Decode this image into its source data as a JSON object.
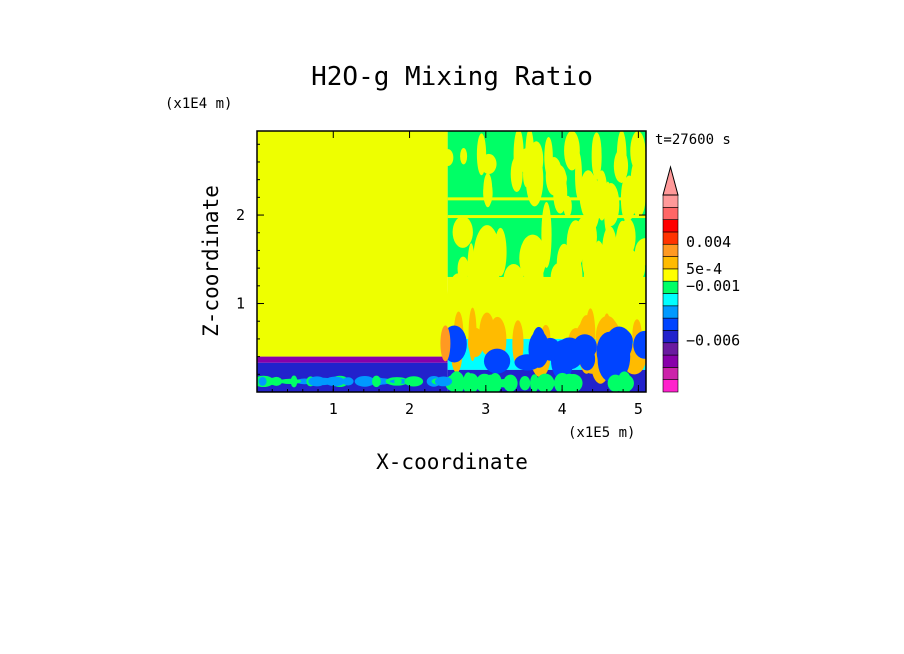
{
  "chart_data": {
    "type": "heatmap",
    "title": "H2O-g Mixing Ratio",
    "xlabel": "X-coordinate",
    "ylabel": "Z-coordinate",
    "x_unit": "(x1E5 m)",
    "y_unit": "(x1E4 m)",
    "time_label": "t=27600 s",
    "xlim": [
      0,
      5.1
    ],
    "ylim": [
      0,
      2.95
    ],
    "x_ticks": [
      1,
      2,
      3,
      4,
      5
    ],
    "y_ticks": [
      1,
      2
    ],
    "colorbar": {
      "colors": [
        "#ff22cc",
        "#cc22aa",
        "#8800aa",
        "#6a1aa0",
        "#2222cc",
        "#0044ff",
        "#0099ff",
        "#00ffff",
        "#00ff66",
        "#ffff00",
        "#ffbb00",
        "#ff9922",
        "#ff3300",
        "#ff0000",
        "#ff6666",
        "#ff9999"
      ],
      "labels": [
        {
          "text": "0.004",
          "level": 0.004
        },
        {
          "text": "5e-4",
          "level": 0.0005
        },
        {
          "text": "−0.001",
          "level": -0.001
        },
        {
          "text": "−0.006",
          "level": -0.006
        }
      ],
      "extend_top": true
    },
    "regions": [
      {
        "name": "left-uniform",
        "x": [
          0,
          2.5
        ],
        "z": [
          0.4,
          2.95
        ],
        "color": "#eeff00"
      },
      {
        "name": "left-purple-band",
        "x": [
          0,
          2.5
        ],
        "z": [
          0.33,
          0.4
        ],
        "color": "#8800aa"
      },
      {
        "name": "left-surface-layer",
        "x": [
          0,
          2.5
        ],
        "z": [
          0,
          0.33
        ],
        "color": "#2222cc"
      },
      {
        "name": "right-upper",
        "x": [
          2.5,
          5.1
        ],
        "z": [
          1.3,
          2.95
        ],
        "color": "#00ff66"
      },
      {
        "name": "right-middle",
        "x": [
          2.5,
          5.1
        ],
        "z": [
          0.6,
          1.3
        ],
        "color": "#eeff00"
      },
      {
        "name": "right-lower",
        "x": [
          2.5,
          5.1
        ],
        "z": [
          0.25,
          0.6
        ],
        "color": "#00ffff"
      },
      {
        "name": "right-surface",
        "x": [
          2.5,
          5.1
        ],
        "z": [
          0,
          0.25
        ],
        "color": "#2222cc"
      }
    ]
  }
}
